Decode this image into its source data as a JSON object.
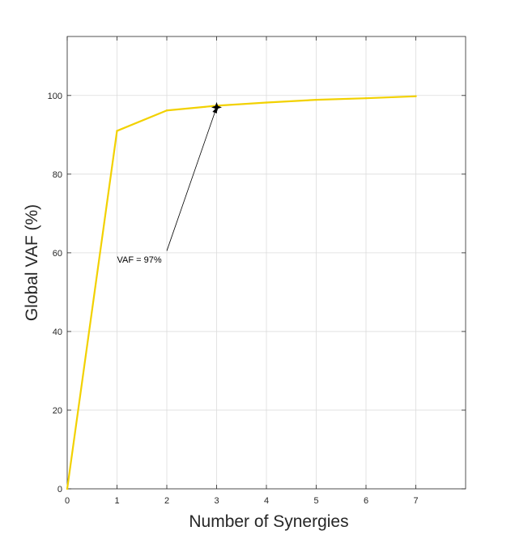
{
  "chart_data": {
    "type": "line",
    "title": "",
    "xlabel": "Number of Synergies",
    "ylabel": "Global VAF (%)",
    "xlim": [
      0,
      8
    ],
    "ylim": [
      0,
      115
    ],
    "xticks": [
      0,
      1,
      2,
      3,
      4,
      5,
      6,
      7
    ],
    "yticks": [
      0,
      20,
      40,
      60,
      80,
      100
    ],
    "grid": true,
    "legend": "none",
    "series": [
      {
        "color": "#f2d100",
        "x": [
          0,
          1,
          2,
          3,
          4,
          5,
          6,
          7
        ],
        "y": [
          0,
          91,
          96.2,
          97.4,
          98.2,
          98.9,
          99.3,
          99.8
        ]
      }
    ],
    "annotations": [
      {
        "text": "VAF = 97%",
        "point": {
          "x": 3,
          "y": 97
        },
        "label_position": {
          "x": 1.0,
          "y": 57.5
        },
        "arrow_tail": {
          "x": 2.0,
          "y": 60.5
        },
        "marker": "star",
        "color": "#000000"
      }
    ]
  }
}
